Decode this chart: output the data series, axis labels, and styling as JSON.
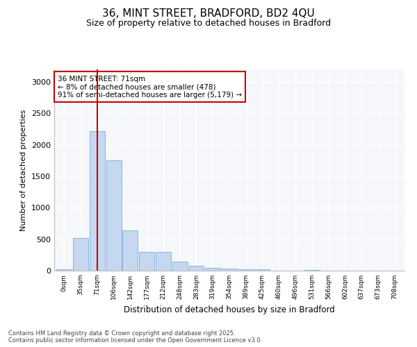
{
  "title_line1": "36, MINT STREET, BRADFORD, BD2 4QU",
  "title_line2": "Size of property relative to detached houses in Bradford",
  "xlabel": "Distribution of detached houses by size in Bradford",
  "ylabel": "Number of detached properties",
  "bar_color": "#c5d8f0",
  "bar_edge_color": "#7aabda",
  "marker_line_color": "#cc0000",
  "annotation_box_color": "#cc0000",
  "categories": [
    "0sqm",
    "35sqm",
    "71sqm",
    "106sqm",
    "142sqm",
    "177sqm",
    "212sqm",
    "248sqm",
    "283sqm",
    "319sqm",
    "354sqm",
    "389sqm",
    "425sqm",
    "460sqm",
    "496sqm",
    "531sqm",
    "566sqm",
    "602sqm",
    "637sqm",
    "673sqm",
    "708sqm"
  ],
  "values": [
    25,
    520,
    2220,
    1750,
    640,
    295,
    295,
    140,
    75,
    45,
    30,
    25,
    20,
    0,
    0,
    15,
    0,
    0,
    0,
    0,
    0
  ],
  "ylim": [
    0,
    3200
  ],
  "yticks": [
    0,
    500,
    1000,
    1500,
    2000,
    2500,
    3000
  ],
  "marker_bin_index": 2,
  "annotation_line1": "36 MINT STREET: 71sqm",
  "annotation_line2": "← 8% of detached houses are smaller (478)",
  "annotation_line3": "91% of semi-detached houses are larger (5,179) →",
  "footer_line1": "Contains HM Land Registry data © Crown copyright and database right 2025.",
  "footer_line2": "Contains public sector information licensed under the Open Government Licence v3.0.",
  "background_color": "#ffffff",
  "plot_bg_color": "#f5f7fa"
}
